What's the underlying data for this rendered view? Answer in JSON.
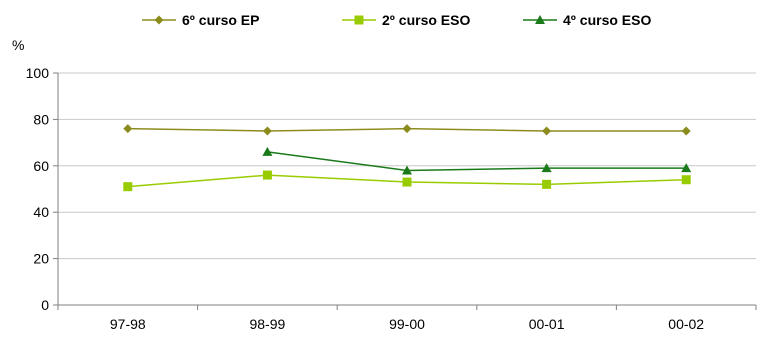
{
  "chart_data": {
    "type": "line",
    "categories": [
      "97-98",
      "98-99",
      "99-00",
      "00-01",
      "00-02"
    ],
    "ylabel": "%",
    "ylim": [
      0,
      100
    ],
    "yticks": [
      0,
      20,
      40,
      60,
      80,
      100
    ],
    "grid": "horizontal",
    "legend_position": "top",
    "series": [
      {
        "name": "6º curso EP",
        "color": "#8c8c1e",
        "marker": "diamond",
        "values": [
          76,
          75,
          76,
          75,
          75
        ]
      },
      {
        "name": "2º curso ESO",
        "color": "#99cc00",
        "marker": "square",
        "values": [
          51,
          56,
          53,
          52,
          54
        ]
      },
      {
        "name": "4º curso ESO",
        "color": "#1a7a1a",
        "marker": "triangle",
        "values": [
          null,
          66,
          58,
          59,
          59
        ]
      }
    ]
  }
}
